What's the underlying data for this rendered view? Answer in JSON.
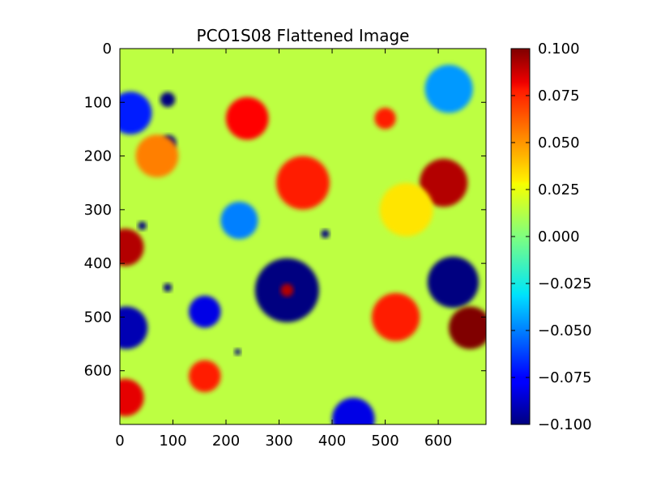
{
  "chart_data": {
    "type": "heatmap",
    "title": "PCO1S08 Flattened Image",
    "xlabel": "",
    "ylabel": "",
    "xlim": [
      0,
      690
    ],
    "ylim": [
      700,
      0
    ],
    "x_ticks": [
      0,
      100,
      200,
      300,
      400,
      500,
      600
    ],
    "y_ticks": [
      0,
      100,
      200,
      300,
      400,
      500,
      600
    ],
    "x_tick_labels": [
      "0",
      "100",
      "200",
      "300",
      "400",
      "500",
      "600"
    ],
    "y_tick_labels": [
      "0",
      "100",
      "200",
      "300",
      "400",
      "500",
      "600"
    ],
    "colormap": "jet",
    "color_range": [
      -0.1,
      0.1
    ],
    "colorbar_ticks": [
      0.1,
      0.075,
      0.05,
      0.025,
      0.0,
      -0.025,
      -0.05,
      -0.075,
      -0.1
    ],
    "colorbar_tick_labels": [
      "0.100",
      "0.075",
      "0.050",
      "0.025",
      "0.000",
      "−0.025",
      "−0.050",
      "−0.075",
      "−0.100"
    ],
    "grid": false,
    "background_value": 0.012,
    "features": [
      {
        "cx": 315,
        "cy": 450,
        "r": 60,
        "value": -0.1
      },
      {
        "cx": 315,
        "cy": 450,
        "r": 12,
        "value": 0.09
      },
      {
        "cx": 628,
        "cy": 435,
        "r": 48,
        "value": -0.1
      },
      {
        "cx": 90,
        "cy": 95,
        "r": 14,
        "value": -0.1
      },
      {
        "cx": 92,
        "cy": 175,
        "r": 14,
        "value": -0.1
      },
      {
        "cx": 387,
        "cy": 345,
        "r": 8,
        "value": -0.1
      },
      {
        "cx": 42,
        "cy": 330,
        "r": 8,
        "value": -0.1
      },
      {
        "cx": 90,
        "cy": 445,
        "r": 8,
        "value": -0.1
      },
      {
        "cx": 222,
        "cy": 565,
        "r": 6,
        "value": -0.1
      },
      {
        "cx": 12,
        "cy": 520,
        "r": 40,
        "value": -0.09
      },
      {
        "cx": 240,
        "cy": 130,
        "r": 40,
        "value": 0.075
      },
      {
        "cx": 345,
        "cy": 250,
        "r": 50,
        "value": 0.07
      },
      {
        "cx": 520,
        "cy": 500,
        "r": 45,
        "value": 0.07
      },
      {
        "cx": 610,
        "cy": 250,
        "r": 45,
        "value": 0.09
      },
      {
        "cx": 660,
        "cy": 520,
        "r": 40,
        "value": 0.1
      },
      {
        "cx": 10,
        "cy": 370,
        "r": 35,
        "value": 0.09
      },
      {
        "cx": 160,
        "cy": 610,
        "r": 30,
        "value": 0.07
      },
      {
        "cx": 500,
        "cy": 130,
        "r": 20,
        "value": 0.07
      },
      {
        "cx": 160,
        "cy": 490,
        "r": 30,
        "value": -0.08
      },
      {
        "cx": 20,
        "cy": 120,
        "r": 40,
        "value": -0.07
      },
      {
        "cx": 620,
        "cy": 75,
        "r": 45,
        "value": -0.045
      },
      {
        "cx": 225,
        "cy": 320,
        "r": 35,
        "value": -0.05
      },
      {
        "cx": 440,
        "cy": 690,
        "r": 40,
        "value": -0.08
      },
      {
        "cx": 70,
        "cy": 200,
        "r": 40,
        "value": 0.05
      },
      {
        "cx": 10,
        "cy": 650,
        "r": 35,
        "value": 0.08
      },
      {
        "cx": 540,
        "cy": 300,
        "r": 50,
        "value": 0.03
      }
    ]
  }
}
